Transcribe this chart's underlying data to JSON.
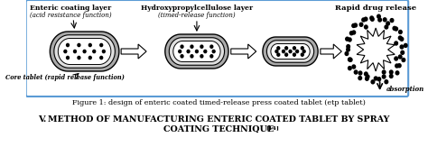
{
  "title_caption": "Figure 1: design of enteric coated timed-release press coated tablet (etp tablet)",
  "section_title_v": "V.",
  "section_text_line1": "METHOD OF MANUFACTURING ENTERIC COATED TABLET BY SPRAY",
  "section_text_line2": "COATING TECHNIQUE",
  "superscript": "[14]",
  "label_enteric_line1": "Enteric coating layer",
  "label_enteric_line2": "(acid resistance function)",
  "label_hydroxy_line1": "Hydroxypropylcellulose layer",
  "label_hydroxy_line2": "(timed-release function)",
  "label_rapid": "Rapid drug release",
  "label_core": "Core tablet (rapid release function)",
  "label_absorption": "absorption",
  "bg_color": "#ffffff",
  "box_border_color": "#5b9bd5"
}
